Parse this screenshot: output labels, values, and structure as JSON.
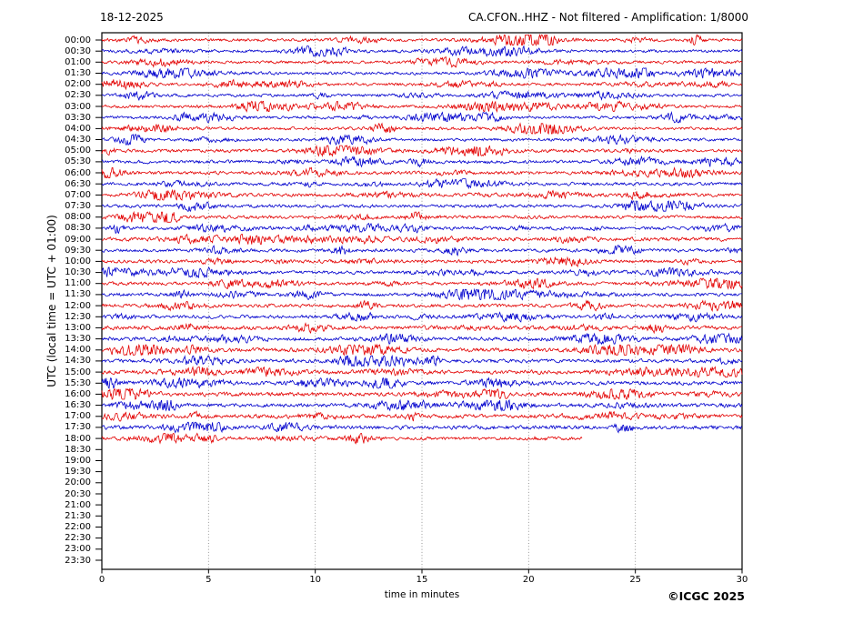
{
  "header": {
    "date": "18-12-2025",
    "title": "CA.CFON..HHZ - Not filtered - Amplification: 1/8000"
  },
  "footer": {
    "xlabel": "time in minutes",
    "copyright": "©ICGC 2025"
  },
  "chart_data": {
    "type": "line",
    "subtype": "seismogram-helicorder-dayplot",
    "station_id": "CA.CFON..HHZ",
    "filter_status": "Not filtered",
    "amplification": "1/8000",
    "date": "18-12-2025",
    "title": "CA.CFON..HHZ - Not filtered - Amplification: 1/8000",
    "xlabel": "time in minutes",
    "ylabel": "UTC (local time = UTC + 01:00)",
    "xlim": [
      0,
      30
    ],
    "xticks": [
      0,
      5,
      10,
      15,
      20,
      25,
      30
    ],
    "minutes_per_row": 30,
    "grid": "vertical-dotted",
    "legend": "none",
    "colors": {
      "red": "#e30000",
      "blue": "#0000cd",
      "grid": "#8a8a8a",
      "frame": "#000000",
      "background": "#ffffff"
    },
    "rows": [
      {
        "time": "00:00",
        "trace": true,
        "color": "red",
        "start_min": 0,
        "end_min": 30,
        "amp": 1.0
      },
      {
        "time": "00:30",
        "trace": true,
        "color": "blue",
        "start_min": 0,
        "end_min": 30,
        "amp": 1.0
      },
      {
        "time": "01:00",
        "trace": true,
        "color": "red",
        "start_min": 0,
        "end_min": 30,
        "amp": 1.0
      },
      {
        "time": "01:30",
        "trace": true,
        "color": "blue",
        "start_min": 0,
        "end_min": 30,
        "amp": 1.0
      },
      {
        "time": "02:00",
        "trace": true,
        "color": "red",
        "start_min": 0,
        "end_min": 30,
        "amp": 1.0
      },
      {
        "time": "02:30",
        "trace": true,
        "color": "blue",
        "start_min": 0,
        "end_min": 30,
        "amp": 1.0
      },
      {
        "time": "03:00",
        "trace": true,
        "color": "red",
        "start_min": 0,
        "end_min": 30,
        "amp": 1.0
      },
      {
        "time": "03:30",
        "trace": true,
        "color": "blue",
        "start_min": 0,
        "end_min": 30,
        "amp": 1.0
      },
      {
        "time": "04:00",
        "trace": true,
        "color": "red",
        "start_min": 0,
        "end_min": 30,
        "amp": 1.0
      },
      {
        "time": "04:30",
        "trace": true,
        "color": "blue",
        "start_min": 0,
        "end_min": 30,
        "amp": 1.0
      },
      {
        "time": "05:00",
        "trace": true,
        "color": "red",
        "start_min": 0,
        "end_min": 30,
        "amp": 1.1
      },
      {
        "time": "05:30",
        "trace": true,
        "color": "blue",
        "start_min": 0,
        "end_min": 30,
        "amp": 1.1
      },
      {
        "time": "06:00",
        "trace": true,
        "color": "red",
        "start_min": 0,
        "end_min": 30,
        "amp": 1.1
      },
      {
        "time": "06:30",
        "trace": true,
        "color": "blue",
        "start_min": 0,
        "end_min": 30,
        "amp": 1.1
      },
      {
        "time": "07:00",
        "trace": true,
        "color": "red",
        "start_min": 0,
        "end_min": 30,
        "amp": 1.1
      },
      {
        "time": "07:30",
        "trace": true,
        "color": "blue",
        "start_min": 0,
        "end_min": 30,
        "amp": 1.1
      },
      {
        "time": "08:00",
        "trace": true,
        "color": "red",
        "start_min": 0,
        "end_min": 30,
        "amp": 1.1
      },
      {
        "time": "08:30",
        "trace": true,
        "color": "blue",
        "start_min": 0,
        "end_min": 30,
        "amp": 1.1
      },
      {
        "time": "09:00",
        "trace": true,
        "color": "red",
        "start_min": 0,
        "end_min": 30,
        "amp": 1.25
      },
      {
        "time": "09:30",
        "trace": true,
        "color": "blue",
        "start_min": 0,
        "end_min": 30,
        "amp": 1.1
      },
      {
        "time": "10:00",
        "trace": true,
        "color": "red",
        "start_min": 0,
        "end_min": 30,
        "amp": 1.1
      },
      {
        "time": "10:30",
        "trace": true,
        "color": "blue",
        "start_min": 0,
        "end_min": 30,
        "amp": 1.1
      },
      {
        "time": "11:00",
        "trace": true,
        "color": "red",
        "start_min": 0,
        "end_min": 30,
        "amp": 1.1
      },
      {
        "time": "11:30",
        "trace": true,
        "color": "blue",
        "start_min": 0,
        "end_min": 30,
        "amp": 1.1
      },
      {
        "time": "12:00",
        "trace": true,
        "color": "red",
        "start_min": 0,
        "end_min": 30,
        "amp": 1.1
      },
      {
        "time": "12:30",
        "trace": true,
        "color": "blue",
        "start_min": 0,
        "end_min": 30,
        "amp": 1.1
      },
      {
        "time": "13:00",
        "trace": true,
        "color": "red",
        "start_min": 0,
        "end_min": 30,
        "amp": 1.3
      },
      {
        "time": "13:30",
        "trace": true,
        "color": "blue",
        "start_min": 0,
        "end_min": 30,
        "amp": 1.3
      },
      {
        "time": "14:00",
        "trace": true,
        "color": "red",
        "start_min": 0,
        "end_min": 30,
        "amp": 1.3
      },
      {
        "time": "14:30",
        "trace": true,
        "color": "blue",
        "start_min": 0,
        "end_min": 30,
        "amp": 1.3
      },
      {
        "time": "15:00",
        "trace": true,
        "color": "red",
        "start_min": 0,
        "end_min": 30,
        "amp": 1.3
      },
      {
        "time": "15:30",
        "trace": true,
        "color": "blue",
        "start_min": 0,
        "end_min": 30,
        "amp": 1.3
      },
      {
        "time": "16:00",
        "trace": true,
        "color": "red",
        "start_min": 0,
        "end_min": 30,
        "amp": 1.3
      },
      {
        "time": "16:30",
        "trace": true,
        "color": "blue",
        "start_min": 0,
        "end_min": 30,
        "amp": 1.3
      },
      {
        "time": "17:00",
        "trace": true,
        "color": "red",
        "start_min": 0,
        "end_min": 30,
        "amp": 1.3
      },
      {
        "time": "17:30",
        "trace": true,
        "color": "blue",
        "start_min": 0,
        "end_min": 30,
        "amp": 1.3
      },
      {
        "time": "18:00",
        "trace": true,
        "color": "red",
        "start_min": 0,
        "end_min": 22.5,
        "amp": 1.1
      },
      {
        "time": "18:30",
        "trace": false
      },
      {
        "time": "19:00",
        "trace": false
      },
      {
        "time": "19:30",
        "trace": false
      },
      {
        "time": "20:00",
        "trace": false
      },
      {
        "time": "20:30",
        "trace": false
      },
      {
        "time": "21:00",
        "trace": false
      },
      {
        "time": "21:30",
        "trace": false
      },
      {
        "time": "22:00",
        "trace": false
      },
      {
        "time": "22:30",
        "trace": false
      },
      {
        "time": "23:00",
        "trace": false
      },
      {
        "time": "23:30",
        "trace": false
      }
    ]
  }
}
